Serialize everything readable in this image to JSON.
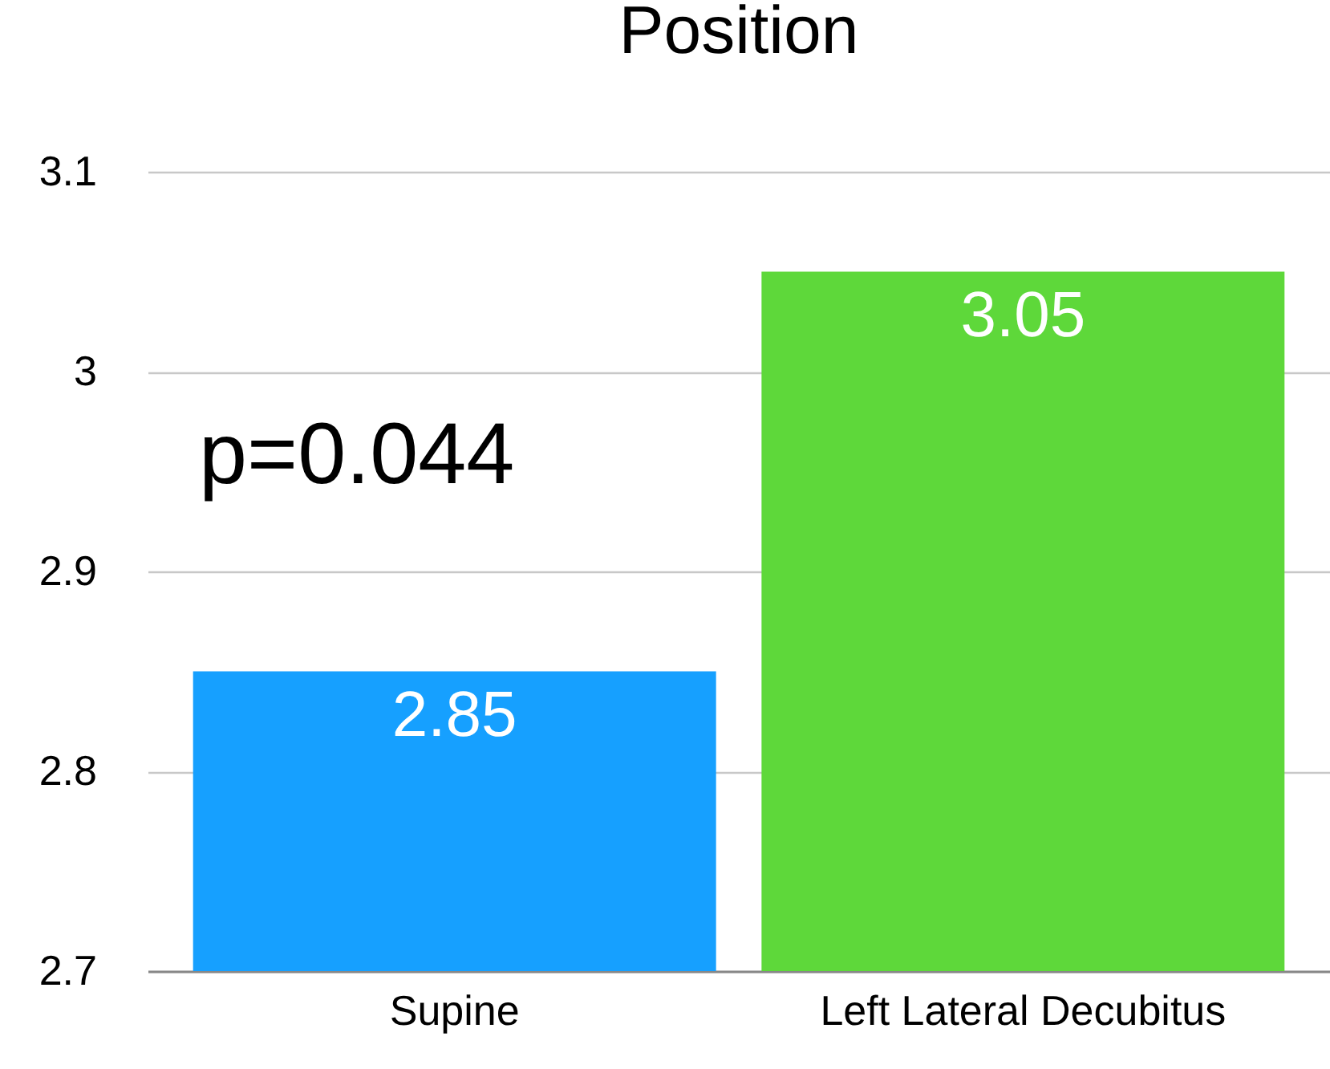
{
  "chart_data": {
    "type": "bar",
    "title": "Position",
    "categories": [
      "Supine",
      "Left Lateral Decubitus"
    ],
    "values": [
      2.85,
      3.05
    ],
    "colors": [
      "#16a0ff",
      "#5ed83a"
    ],
    "ylim": [
      2.7,
      3.1
    ],
    "yticks": [
      2.7,
      2.8,
      2.9,
      3,
      3.1
    ],
    "grid": "y",
    "data_labels": true,
    "annotations": [
      "p=0.044"
    ]
  }
}
